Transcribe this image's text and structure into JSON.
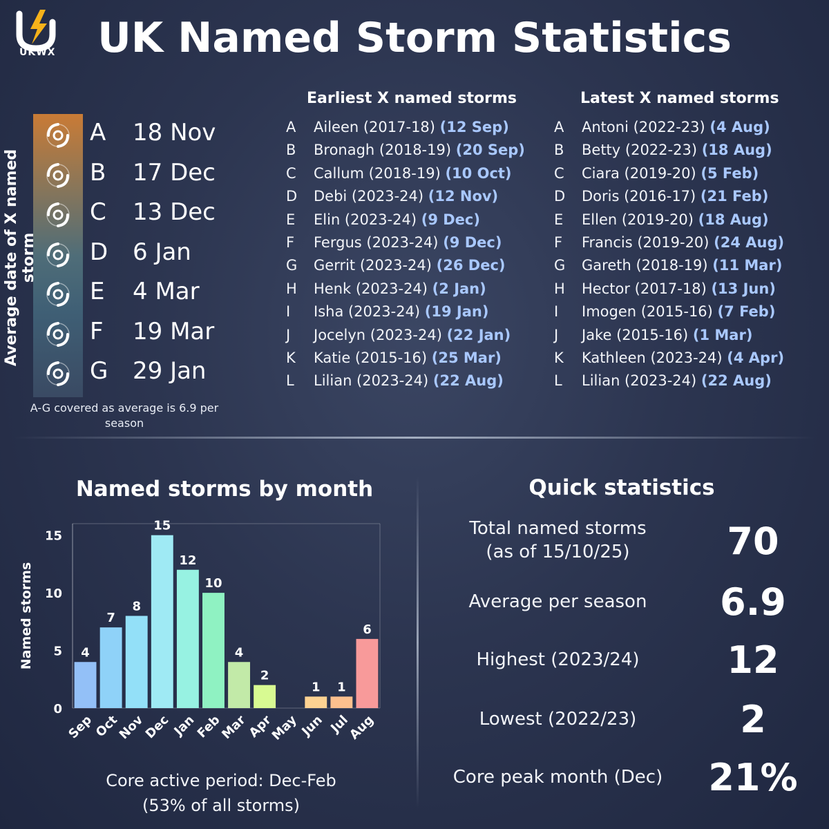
{
  "logo_text": "UKWX",
  "title": "UK Named Storm Statistics",
  "average_panel": {
    "axis_label": "Average date of X named storm",
    "icon": "storm-swirl-icon",
    "rows": [
      {
        "letter": "A",
        "date": "18 Nov"
      },
      {
        "letter": "B",
        "date": "17 Dec"
      },
      {
        "letter": "C",
        "date": "13 Dec"
      },
      {
        "letter": "D",
        "date": "6 Jan"
      },
      {
        "letter": "E",
        "date": "4 Mar"
      },
      {
        "letter": "F",
        "date": "19 Mar"
      },
      {
        "letter": "G",
        "date": "29 Jan"
      }
    ],
    "note": "A-G covered as average is 6.9 per season"
  },
  "earliest": {
    "heading": "Earliest X named storms",
    "rows": [
      {
        "letter": "A",
        "text": "Aileen (2017-18)",
        "date": "(12 Sep)"
      },
      {
        "letter": "B",
        "text": "Bronagh (2018-19)",
        "date": "(20 Sep)"
      },
      {
        "letter": "C",
        "text": "Callum (2018-19)",
        "date": "(10 Oct)"
      },
      {
        "letter": "D",
        "text": "Debi (2023-24)",
        "date": "(12 Nov)"
      },
      {
        "letter": "E",
        "text": "Elin (2023-24)",
        "date": "(9 Dec)"
      },
      {
        "letter": "F",
        "text": "Fergus (2023-24)",
        "date": "(9 Dec)"
      },
      {
        "letter": "G",
        "text": "Gerrit (2023-24)",
        "date": "(26 Dec)"
      },
      {
        "letter": "H",
        "text": "Henk (2023-24)",
        "date": "(2 Jan)"
      },
      {
        "letter": "I",
        "text": "Isha (2023-24)",
        "date": "(19 Jan)"
      },
      {
        "letter": "J",
        "text": "Jocelyn (2023-24)",
        "date": "(22 Jan)"
      },
      {
        "letter": "K",
        "text": "Katie (2015-16)",
        "date": "(25 Mar)"
      },
      {
        "letter": "L",
        "text": "Lilian (2023-24)",
        "date": "(22 Aug)"
      }
    ]
  },
  "latest": {
    "heading": "Latest X named storms",
    "rows": [
      {
        "letter": "A",
        "text": "Antoni (2022-23)",
        "date": "(4 Aug)"
      },
      {
        "letter": "B",
        "text": "Betty (2022-23)",
        "date": "(18 Aug)"
      },
      {
        "letter": "C",
        "text": "Ciara (2019-20)",
        "date": "(5 Feb)"
      },
      {
        "letter": "D",
        "text": "Doris (2016-17)",
        "date": "(21 Feb)"
      },
      {
        "letter": "E",
        "text": "Ellen (2019-20)",
        "date": "(18 Aug)"
      },
      {
        "letter": "F",
        "text": "Francis (2019-20)",
        "date": "(24 Aug)"
      },
      {
        "letter": "G",
        "text": "Gareth (2018-19)",
        "date": "(11 Mar)"
      },
      {
        "letter": "H",
        "text": "Hector (2017-18)",
        "date": "(13 Jun)"
      },
      {
        "letter": "I",
        "text": "Imogen (2015-16)",
        "date": "(7 Feb)"
      },
      {
        "letter": "J",
        "text": "Jake (2015-16)",
        "date": "(1 Mar)"
      },
      {
        "letter": "K",
        "text": "Kathleen (2023-24)",
        "date": "(4 Apr)"
      },
      {
        "letter": "L",
        "text": "Lilian (2023-24)",
        "date": "(22 Aug)"
      }
    ]
  },
  "chart_data": {
    "type": "bar",
    "title": "Named storms by month",
    "ylabel": "Named storms",
    "xlabel": "",
    "categories": [
      "Sep",
      "Oct",
      "Nov",
      "Dec",
      "Jan",
      "Feb",
      "Mar",
      "Apr",
      "May",
      "Jun",
      "Jul",
      "Aug"
    ],
    "values": [
      4,
      7,
      8,
      15,
      12,
      10,
      4,
      2,
      0,
      1,
      1,
      6
    ],
    "value_labels": [
      "4",
      "7",
      "8",
      "15",
      "12",
      "10",
      "4",
      "2",
      "",
      "1",
      "1",
      "6"
    ],
    "colors": [
      "#93c0f7",
      "#8fd2f8",
      "#93e0f8",
      "#9feaf4",
      "#97f2e2",
      "#8ff2c2",
      "#c2eaa8",
      "#d8fa92",
      "#cccccc",
      "#fcd292",
      "#fcc08e",
      "#f89a9a"
    ],
    "yticks": [
      0,
      5,
      10,
      15
    ],
    "ylim": [
      0,
      16
    ],
    "grid": false
  },
  "caption": {
    "line1": "Core active period: Dec-Feb",
    "line2": "(53% of all storms)"
  },
  "quick_stats": {
    "title": "Quick statistics",
    "rows": [
      {
        "label_line1": "Total named storms",
        "label_line2": "(as of 15/10/25)",
        "value": "70"
      },
      {
        "label_line1": "Average per season",
        "label_line2": "",
        "value": "6.9"
      },
      {
        "label_line1": "Highest (2023/24)",
        "label_line2": "",
        "value": "12"
      },
      {
        "label_line1": "Lowest (2022/23)",
        "label_line2": "",
        "value": "2"
      },
      {
        "label_line1": "Core peak month (Dec)",
        "label_line2": "",
        "value": "21%"
      }
    ]
  }
}
